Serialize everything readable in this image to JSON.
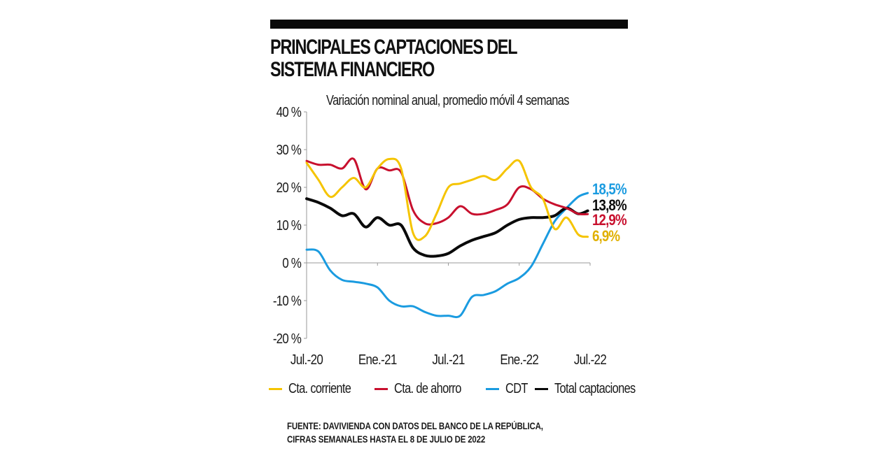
{
  "header": {
    "title_line1": "PRINCIPALES CAPTACIONES DEL",
    "title_line2": "SISTEMA FINANCIERO",
    "subtitle": "Variación nominal anual, promedio móvil 4 semanas"
  },
  "legend": [
    {
      "label": "Cta. corriente",
      "color": "#f5c400"
    },
    {
      "label": "Cta. de ahorro",
      "color": "#c8102e"
    },
    {
      "label": "CDT",
      "color": "#1a9be0"
    },
    {
      "label": "Total captaciones",
      "color": "#0a0a0a"
    }
  ],
  "source": {
    "line1": "FUENTE: DAVIVIENDA CON DATOS DEL BANCO DE LA REPÚBLICA,",
    "line2": "CIFRAS SEMANALES HASTA EL 8 DE JULIO DE 2022"
  },
  "chart_data": {
    "type": "line",
    "title": "PRINCIPALES CAPTACIONES DEL SISTEMA FINANCIERO",
    "subtitle": "Variación nominal anual, promedio móvil 4 semanas",
    "xlabel": "",
    "ylabel": "",
    "ylim": [
      -20,
      40
    ],
    "yticks": [
      40,
      30,
      20,
      10,
      0,
      -10,
      -20
    ],
    "ytick_labels": [
      "40 %",
      "30 %",
      "20 %",
      "10 %",
      "0 %",
      "-10 %",
      "-20 %"
    ],
    "xlim_months": [
      0,
      24
    ],
    "xticks_months": [
      0,
      6,
      12,
      18,
      24
    ],
    "xtick_labels": [
      "Jul.-20",
      "Ene.-21",
      "Jul.-21",
      "Ene.-22",
      "Jul.-22"
    ],
    "x_months": [
      0,
      1,
      2,
      3,
      4,
      5,
      6,
      7,
      8,
      9,
      10,
      11,
      12,
      13,
      14,
      15,
      16,
      17,
      18,
      19,
      20,
      21,
      22,
      23,
      23.8
    ],
    "grid": false,
    "legend_position": "bottom",
    "series": [
      {
        "name": "Cta. corriente",
        "color": "#f5c400",
        "values": [
          26.5,
          22,
          17.5,
          20,
          22.5,
          20,
          25,
          27.5,
          25,
          8,
          7,
          13,
          20,
          21,
          22,
          23,
          22,
          25,
          27,
          20,
          17,
          9,
          12,
          7.5,
          6.9
        ],
        "end_label": "6,9%"
      },
      {
        "name": "Cta. de ahorro",
        "color": "#c8102e",
        "values": [
          27,
          26,
          26,
          25,
          27.5,
          19.5,
          25,
          24.5,
          24,
          14,
          10.5,
          10.5,
          12,
          15,
          13,
          13,
          14,
          15.5,
          20,
          19.5,
          17,
          15.5,
          14.5,
          13,
          12.9
        ],
        "end_label": "12,9%"
      },
      {
        "name": "CDT",
        "color": "#1a9be0",
        "values": [
          3.5,
          3,
          -2,
          -4.5,
          -5,
          -5.5,
          -6.5,
          -10,
          -11.5,
          -11.5,
          -13,
          -14,
          -14,
          -14,
          -9,
          -8.5,
          -7.5,
          -5.5,
          -4,
          -1,
          5,
          11,
          14.5,
          17.5,
          18.5
        ],
        "end_label": "18,5%"
      },
      {
        "name": "Total captaciones",
        "color": "#0a0a0a",
        "values": [
          17,
          16,
          14.5,
          12.5,
          13,
          9.5,
          12,
          10,
          10,
          4,
          2,
          1.8,
          2.5,
          4.5,
          6,
          7,
          8,
          10,
          11.5,
          12,
          12,
          12.5,
          14.5,
          13,
          13.8
        ],
        "end_label": "13,8%"
      }
    ]
  }
}
